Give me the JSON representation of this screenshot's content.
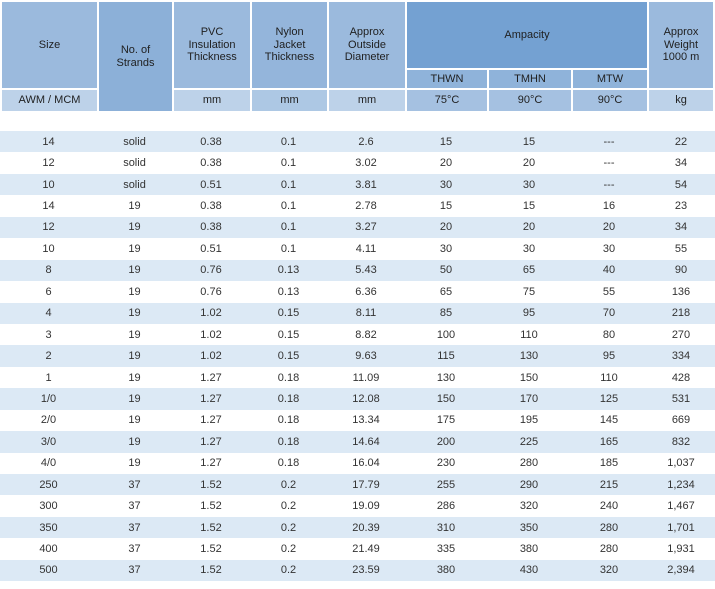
{
  "colors": {
    "light_header": "#9BBADD",
    "strands_header": "#8CB0D8",
    "nylon_header": "#94B5DB",
    "ampacity_header": "#74A1D2",
    "band2": "#8FB3DA",
    "band3": "#A5C1E1",
    "sub_light": "#BDD2E9",
    "nylon_sub": "#ADC8E4",
    "row_stripe": "#DCE9F5",
    "row_white": "#FFFFFF",
    "text": "#2E2E2E"
  },
  "header": {
    "size": "Size",
    "size_sub": "AWM / MCM",
    "strands": "No. of\nStrands",
    "pvc": "PVC\nInsulation\nThickness",
    "pvc_unit": "mm",
    "nylon": "Nylon\nJacket\nThickness",
    "nylon_unit": "mm",
    "diameter": "Approx\nOutside\nDiameter",
    "diameter_unit": "mm",
    "ampacity": "Ampacity",
    "thwn": "THWN",
    "tmhn": "TMHN",
    "mtw": "MTW",
    "thwn_temp": "75°C",
    "tmhn_temp": "90°C",
    "mtw_temp": "90°C",
    "weight": "Approx\nWeight\n1000 m",
    "weight_unit": "kg"
  },
  "table": {
    "columns": [
      "Size AWM / MCM",
      "No. of Strands",
      "PVC Insulation Thickness (mm)",
      "Nylon Jacket Thickness (mm)",
      "Approx Outside Diameter (mm)",
      "Ampacity THWN 75°C",
      "Ampacity TMHN 90°C",
      "Ampacity MTW 90°C",
      "Approx Weight 1000 m (kg)"
    ],
    "rows": [
      [
        "14",
        "solid",
        "0.38",
        "0.1",
        "2.6",
        "15",
        "15",
        "---",
        "22"
      ],
      [
        "12",
        "solid",
        "0.38",
        "0.1",
        "3.02",
        "20",
        "20",
        "---",
        "34"
      ],
      [
        "10",
        "solid",
        "0.51",
        "0.1",
        "3.81",
        "30",
        "30",
        "---",
        "54"
      ],
      [
        "14",
        "19",
        "0.38",
        "0.1",
        "2.78",
        "15",
        "15",
        "16",
        "23"
      ],
      [
        "12",
        "19",
        "0.38",
        "0.1",
        "3.27",
        "20",
        "20",
        "20",
        "34"
      ],
      [
        "10",
        "19",
        "0.51",
        "0.1",
        "4.11",
        "30",
        "30",
        "30",
        "55"
      ],
      [
        "8",
        "19",
        "0.76",
        "0.13",
        "5.43",
        "50",
        "65",
        "40",
        "90"
      ],
      [
        "6",
        "19",
        "0.76",
        "0.13",
        "6.36",
        "65",
        "75",
        "55",
        "136"
      ],
      [
        "4",
        "19",
        "1.02",
        "0.15",
        "8.11",
        "85",
        "95",
        "70",
        "218"
      ],
      [
        "3",
        "19",
        "1.02",
        "0.15",
        "8.82",
        "100",
        "110",
        "80",
        "270"
      ],
      [
        "2",
        "19",
        "1.02",
        "0.15",
        "9.63",
        "115",
        "130",
        "95",
        "334"
      ],
      [
        "1",
        "19",
        "1.27",
        "0.18",
        "11.09",
        "130",
        "150",
        "110",
        "428"
      ],
      [
        "1/0",
        "19",
        "1.27",
        "0.18",
        "12.08",
        "150",
        "170",
        "125",
        "531"
      ],
      [
        "2/0",
        "19",
        "1.27",
        "0.18",
        "13.34",
        "175",
        "195",
        "145",
        "669"
      ],
      [
        "3/0",
        "19",
        "1.27",
        "0.18",
        "14.64",
        "200",
        "225",
        "165",
        "832"
      ],
      [
        "4/0",
        "19",
        "1.27",
        "0.18",
        "16.04",
        "230",
        "280",
        "185",
        "1,037"
      ],
      [
        "250",
        "37",
        "1.52",
        "0.2",
        "17.79",
        "255",
        "290",
        "215",
        "1,234"
      ],
      [
        "300",
        "37",
        "1.52",
        "0.2",
        "19.09",
        "286",
        "320",
        "240",
        "1,467"
      ],
      [
        "350",
        "37",
        "1.52",
        "0.2",
        "20.39",
        "310",
        "350",
        "280",
        "1,701"
      ],
      [
        "400",
        "37",
        "1.52",
        "0.2",
        "21.49",
        "335",
        "380",
        "280",
        "1,931"
      ],
      [
        "500",
        "37",
        "1.52",
        "0.2",
        "23.59",
        "380",
        "430",
        "320",
        "2,394"
      ]
    ]
  }
}
